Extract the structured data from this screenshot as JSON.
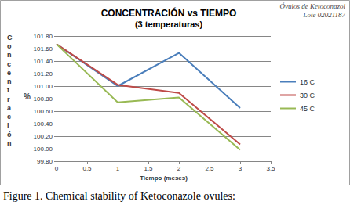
{
  "chart_data": {
    "type": "line",
    "title": "CONCENTRACIÓN vs TIEMPO",
    "subtitle": "(3 temperaturas)",
    "xlabel": "Tiempo (meses)",
    "ylabel": "Concentración",
    "annotations": [
      "Óvulos de Ketoconazol",
      "Lote 02021187",
      "%"
    ],
    "caption": "Figure 1. Chemical stability of Ketoconazole ovules:",
    "x": [
      0,
      1,
      2,
      3
    ],
    "series": [
      {
        "name": "16 C",
        "color": "#4a7ebb",
        "values": [
          101.67,
          101.0,
          101.53,
          100.65
        ]
      },
      {
        "name": "30 C",
        "color": "#be4b48",
        "values": [
          101.67,
          101.02,
          100.89,
          100.07
        ]
      },
      {
        "name": "45 C",
        "color": "#98b954",
        "values": [
          101.67,
          100.74,
          100.82,
          99.98
        ]
      }
    ],
    "xlim": [
      0,
      3.5
    ],
    "xticks": [
      0,
      0.5,
      1,
      1.5,
      2,
      2.5,
      3,
      3.5
    ],
    "ylim": [
      99.8,
      101.8
    ],
    "yticks": [
      {
        "value": 99.8,
        "label": "99.80"
      },
      {
        "value": 100.0,
        "label": "100.00"
      },
      {
        "value": 100.2,
        "label": "100.20"
      },
      {
        "value": 100.4,
        "label": "100.40"
      },
      {
        "value": 100.6,
        "label": "100.60"
      },
      {
        "value": 100.8,
        "label": "100.80"
      },
      {
        "value": 101.0,
        "label": "101.00"
      },
      {
        "value": 101.2,
        "label": "101.20"
      },
      {
        "value": 101.4,
        "label": "101.40"
      },
      {
        "value": 101.6,
        "label": "101.60"
      },
      {
        "value": 101.8,
        "label": "101.80"
      }
    ],
    "grid": true,
    "legend": "right",
    "marker": "none"
  }
}
